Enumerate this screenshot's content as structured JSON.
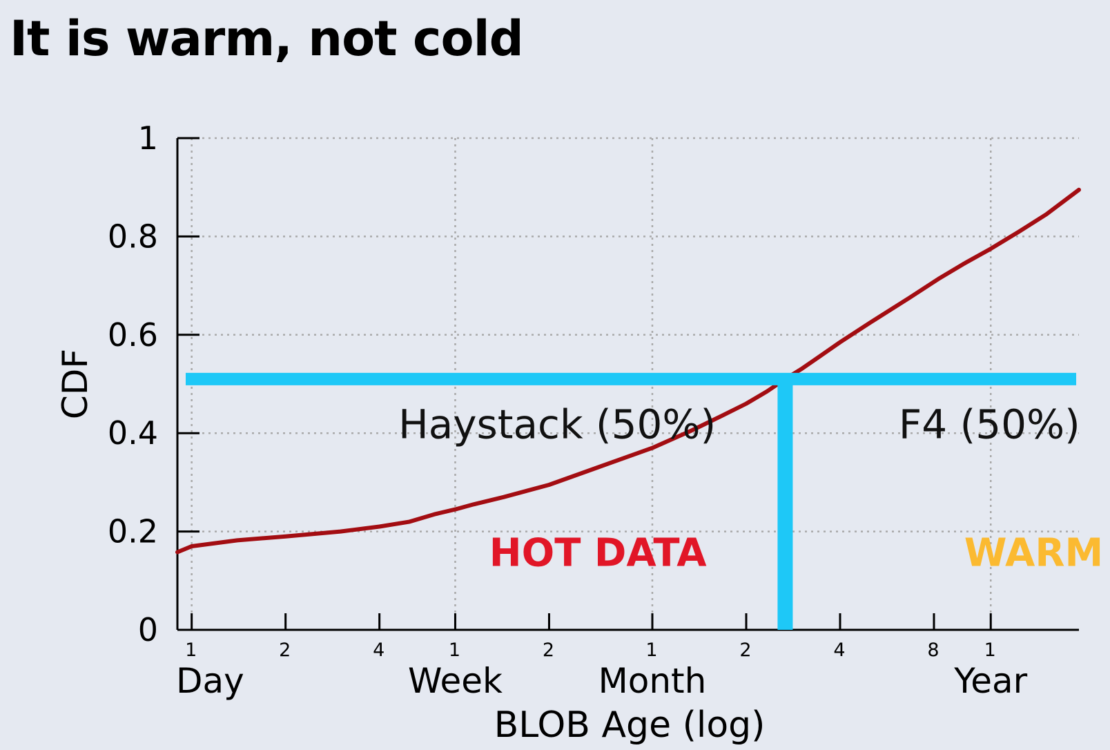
{
  "slide": {
    "title": "It is warm, not cold"
  },
  "chart_data": {
    "type": "line",
    "xlabel": "BLOB Age (log)",
    "ylabel": "CDF",
    "x_scale": "log",
    "x_unit": "days",
    "xlim": [
      0.9,
      700
    ],
    "ylim": [
      0,
      1
    ],
    "grid": true,
    "y_ticks": [
      {
        "value": 0,
        "label": "0"
      },
      {
        "value": 0.2,
        "label": "0.2"
      },
      {
        "value": 0.4,
        "label": "0.4"
      },
      {
        "value": 0.6,
        "label": "0.6"
      },
      {
        "value": 0.8,
        "label": "0.8"
      },
      {
        "value": 1,
        "label": "1"
      }
    ],
    "x_ticks": [
      {
        "value": 1,
        "label": "1"
      },
      {
        "value": 2,
        "label": "2"
      },
      {
        "value": 4,
        "label": "4"
      },
      {
        "value": 7,
        "label": "1"
      },
      {
        "value": 14,
        "label": "2"
      },
      {
        "value": 30,
        "label": "1"
      },
      {
        "value": 60,
        "label": "2"
      },
      {
        "value": 120,
        "label": "4"
      },
      {
        "value": 240,
        "label": "8"
      },
      {
        "value": 365,
        "label": "1"
      }
    ],
    "x_unit_labels": [
      {
        "value": 1,
        "label": "Day"
      },
      {
        "value": 7,
        "label": "Week"
      },
      {
        "value": 30,
        "label": "Month"
      },
      {
        "value": 365,
        "label": "Year"
      }
    ],
    "grid_x": [
      1,
      7,
      30,
      365
    ],
    "series": [
      {
        "color": "#a30d12",
        "x": [
          0.9,
          1,
          1.4,
          2,
          3,
          4,
          5,
          6,
          7,
          8,
          10,
          14,
          20,
          30,
          40,
          50,
          60,
          70,
          80,
          90,
          100,
          120,
          150,
          200,
          250,
          300,
          365,
          450,
          550,
          700
        ],
        "y": [
          0.158,
          0.17,
          0.182,
          0.19,
          0.2,
          0.21,
          0.22,
          0.235,
          0.245,
          0.255,
          0.27,
          0.295,
          0.33,
          0.37,
          0.405,
          0.435,
          0.46,
          0.485,
          0.51,
          0.53,
          0.55,
          0.585,
          0.625,
          0.675,
          0.715,
          0.745,
          0.775,
          0.81,
          0.845,
          0.895
        ]
      }
    ],
    "threshold": {
      "x": 80,
      "y": 0.51,
      "color": "#1ec8f7"
    },
    "annotations": [
      {
        "text": "Haystack (50%)",
        "x": 4.6,
        "y": 0.39,
        "color": "#111111"
      },
      {
        "text": "F4 (50%)",
        "x": 185,
        "y": 0.39,
        "color": "#111111"
      },
      {
        "text": "HOT DATA",
        "x": 9,
        "y": 0.13,
        "color": "#e11627"
      },
      {
        "text": "WARM DATA",
        "x": 300,
        "y": 0.13,
        "color": "#fbba31"
      }
    ]
  }
}
